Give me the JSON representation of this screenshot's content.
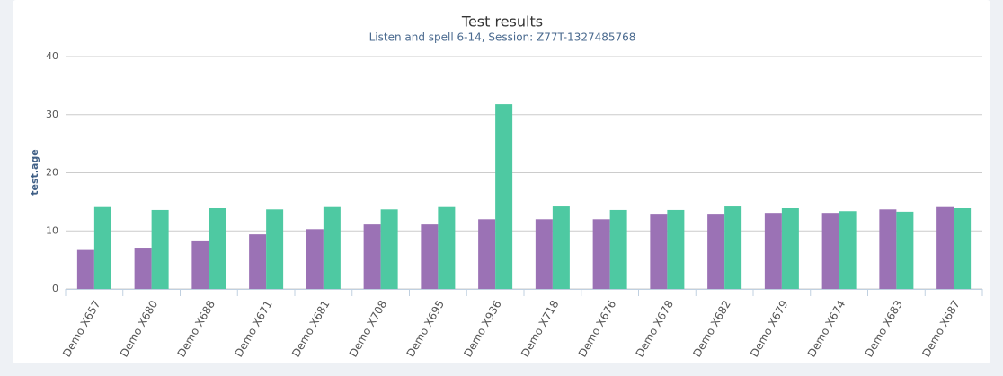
{
  "chart_data": {
    "type": "bar",
    "title": "Test results",
    "subtitle": "Listen and spell 6-14, Session: Z77T-1327485768",
    "y_label": "test.age",
    "categories": [
      "Demo X657",
      "Demo X680",
      "Demo X688",
      "Demo X671",
      "Demo X681",
      "Demo X708",
      "Demo X695",
      "Demo X936",
      "Demo X718",
      "Demo X676",
      "Demo X678",
      "Demo X682",
      "Demo X679",
      "Demo X674",
      "Demo X683",
      "Demo X687"
    ],
    "series": [
      {
        "color": "#9b72b5",
        "values": [
          6.7,
          7.1,
          8.2,
          9.4,
          10.3,
          11.1,
          11.1,
          12.0,
          12.0,
          12.0,
          12.8,
          12.8,
          13.1,
          13.1,
          13.7,
          14.1
        ]
      },
      {
        "color": "#4ec9a2",
        "values": [
          14.1,
          13.6,
          13.9,
          13.7,
          14.1,
          13.7,
          14.1,
          31.8,
          14.2,
          13.6,
          13.6,
          14.2,
          13.9,
          13.4,
          13.3,
          13.9
        ]
      }
    ],
    "ylim": [
      0,
      40
    ],
    "yticks": [
      0,
      10,
      20,
      30,
      40
    ],
    "grid": true
  }
}
